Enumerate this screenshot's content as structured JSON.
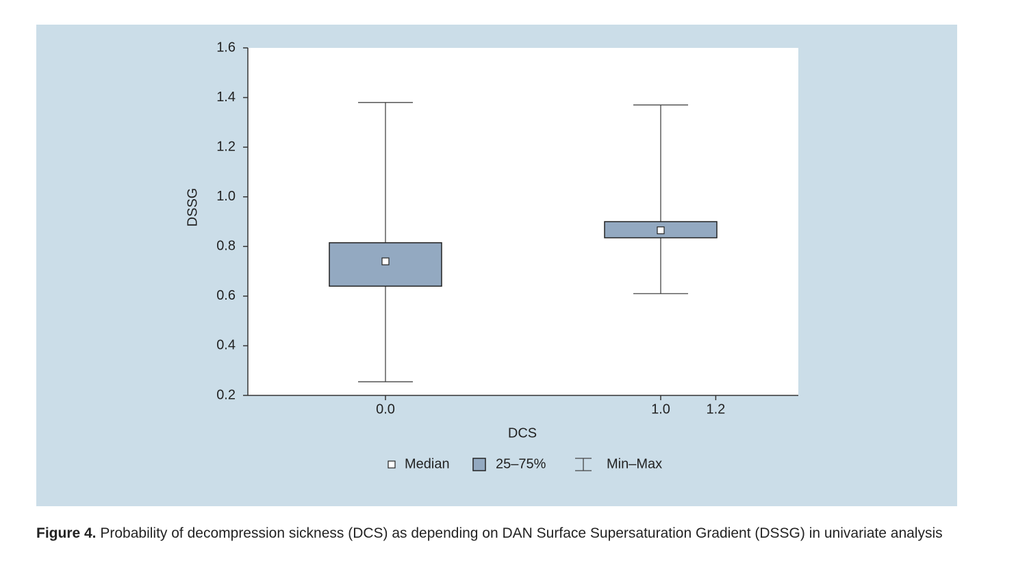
{
  "chart_data": {
    "type": "box",
    "xlabel": "DCS",
    "ylabel": "DSSG",
    "xlim": [
      -0.5,
      1.5
    ],
    "ylim": [
      0.2,
      1.6
    ],
    "xticks": [
      {
        "value": 0,
        "label": "0.0"
      },
      {
        "value": 1,
        "label": "1.0"
      },
      1.2
    ],
    "yticks": [
      0.2,
      0.4,
      0.6,
      0.8,
      {
        "value": 1,
        "label": "1.0"
      },
      1.2,
      1.4,
      1.6
    ],
    "boxes": [
      {
        "x": 0,
        "min": 0.255,
        "q1": 0.64,
        "median": 0.74,
        "q3": 0.815,
        "max": 1.38
      },
      {
        "x": 1,
        "min": 0.61,
        "q1": 0.835,
        "median": 0.865,
        "q3": 0.9,
        "max": 1.37
      }
    ],
    "color": "#93a9c1",
    "legend": [
      "Median",
      "25–75%",
      "Min–Max"
    ]
  },
  "caption": {
    "label": "Figure 4.",
    "text": "Probability of decompression sickness (DCS) as depending on DAN Surface Supersaturation Gradient (DSSG) in univariate analysis"
  }
}
